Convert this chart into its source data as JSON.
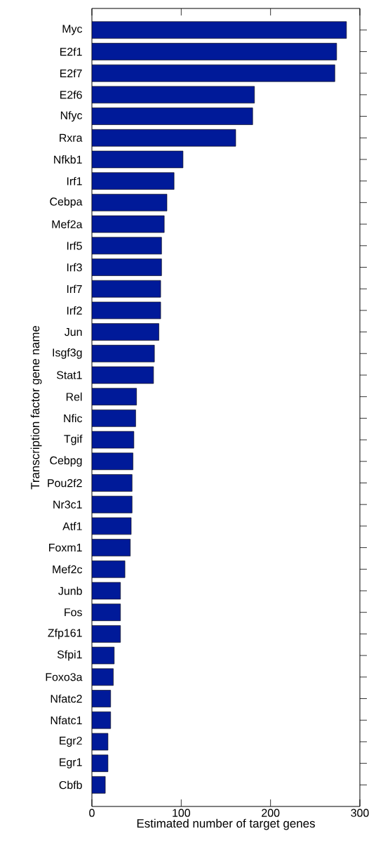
{
  "chart_data": {
    "type": "bar",
    "orientation": "horizontal",
    "xlabel": "Estimated number of target genes",
    "ylabel": "Transcription factor gene name",
    "categories": [
      "Myc",
      "E2f1",
      "E2f7",
      "E2f6",
      "Nfyc",
      "Rxra",
      "Nfkb1",
      "Irf1",
      "Cebpa",
      "Mef2a",
      "Irf5",
      "Irf3",
      "Irf7",
      "Irf2",
      "Jun",
      "Isgf3g",
      "Stat1",
      "Rel",
      "Nfic",
      "Tgif",
      "Cebpg",
      "Pou2f2",
      "Nr3c1",
      "Atf1",
      "Foxm1",
      "Mef2c",
      "Junb",
      "Fos",
      "Zfp161",
      "Sfpi1",
      "Foxo3a",
      "Nfatc2",
      "Nfatc1",
      "Egr2",
      "Egr1",
      "Cbfb"
    ],
    "values": [
      285,
      274,
      272,
      182,
      180,
      161,
      102,
      92,
      84,
      81,
      78,
      78,
      77,
      77,
      75,
      70,
      69,
      50,
      49,
      47,
      46,
      45,
      45,
      44,
      43,
      37,
      32,
      32,
      32,
      25,
      24,
      21,
      21,
      18,
      18,
      15
    ],
    "color": "#001a99",
    "xlim": [
      0,
      300
    ],
    "xticks": [
      0,
      100,
      200,
      300
    ]
  }
}
